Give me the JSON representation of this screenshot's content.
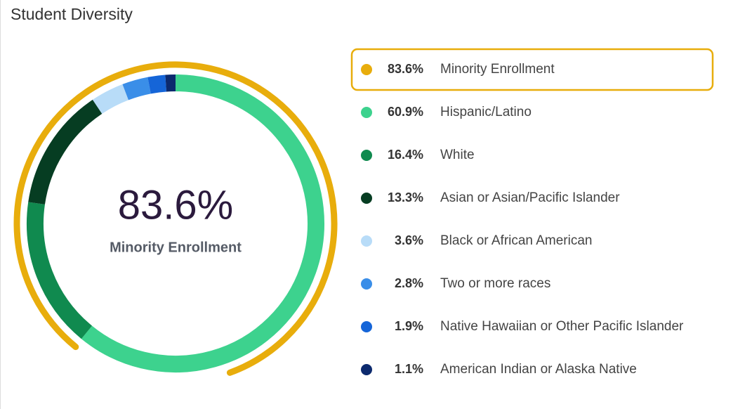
{
  "chart_data": {
    "type": "donut",
    "title": "Student Diversity",
    "highlight": {
      "name": "Minority Enrollment",
      "value": 83.6,
      "value_label": "83.6%",
      "color": "#e8ad0c"
    },
    "categories": [
      "Hispanic/Latino",
      "White",
      "Asian or Asian/Pacific Islander",
      "Black or African American",
      "Two or more races",
      "Native Hawaiian or Other Pacific Islander",
      "American Indian or Alaska Native"
    ],
    "values": [
      60.9,
      16.4,
      13.3,
      3.6,
      2.8,
      1.9,
      1.1
    ],
    "value_labels": [
      "60.9%",
      "16.4%",
      "13.3%",
      "3.6%",
      "2.8%",
      "1.9%",
      "1.1%"
    ],
    "colors": [
      "#3dd28e",
      "#108a4f",
      "#063d22",
      "#b8dcf8",
      "#3a8ee8",
      "#1565d8",
      "#0c2a6e"
    ]
  }
}
